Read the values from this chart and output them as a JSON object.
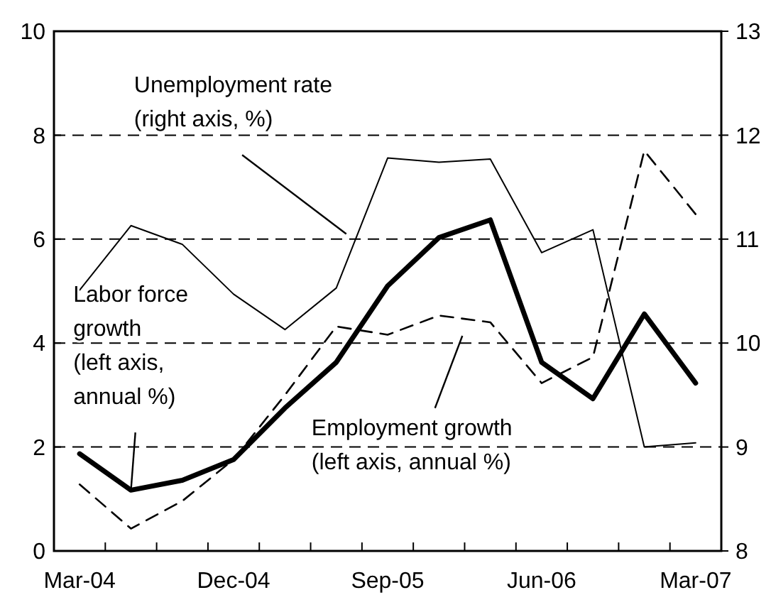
{
  "chart_data": {
    "type": "line",
    "categories": [
      "Mar-04",
      null,
      null,
      "Dec-04",
      null,
      null,
      "Sep-05",
      null,
      null,
      "Jun-06",
      null,
      null,
      "Mar-07"
    ],
    "series": [
      {
        "color": "#000000",
        "axis": "y2",
        "line_style": "solid",
        "values": [
          10.51,
          11.13,
          10.95,
          10.47,
          10.13,
          10.53,
          11.78,
          11.74,
          11.77,
          10.87,
          11.09,
          9.0,
          9.04
        ]
      },
      {
        "color": "#000000",
        "line_style": "solid",
        "values": [
          1.87,
          1.17,
          1.36,
          1.76,
          2.75,
          3.63,
          5.1,
          6.03,
          6.37,
          3.63,
          2.93,
          4.56,
          3.23
        ]
      },
      {
        "color": "#000000",
        "line_style": "dashed",
        "values": [
          1.28,
          0.43,
          0.96,
          1.76,
          3.0,
          4.32,
          4.16,
          4.53,
          4.4,
          3.23,
          3.73,
          7.7,
          6.48
        ]
      }
    ],
    "annotations": [
      "Unemployment rate\n(right axis, %)",
      {
        "text": "Labor force\ngrowth\n(left axis,\nannual %)",
        "y": 1.17
      },
      "Employment growth\n(left axis, annual %)"
    ],
    "ylim": [
      0,
      10
    ],
    "yticks": [
      0,
      2,
      4,
      6,
      8,
      10
    ],
    "y2lim": [
      8,
      13
    ],
    "y2ticks": [
      8,
      9,
      10,
      11,
      12,
      13
    ],
    "grid": "y",
    "marker": "none"
  }
}
